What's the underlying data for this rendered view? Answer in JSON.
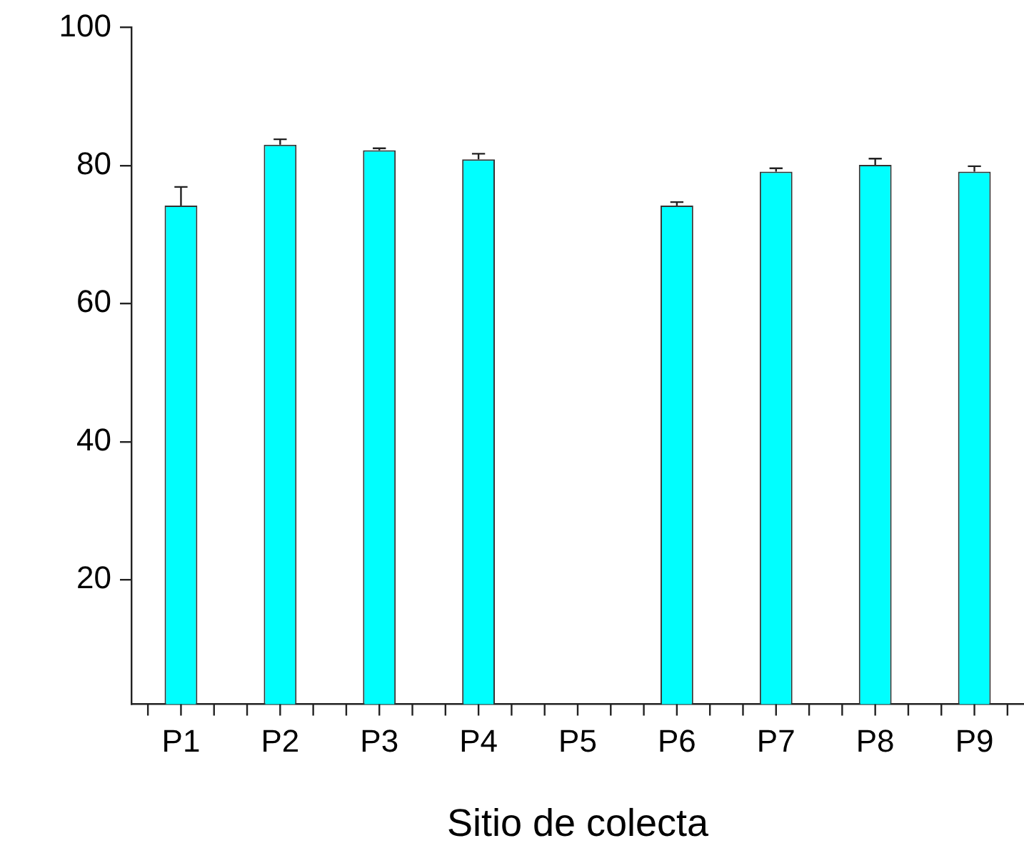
{
  "chart_data": {
    "type": "bar",
    "xlabel": "Sitio de colecta",
    "categories": [
      "P1",
      "P2",
      "P3",
      "P4",
      "P5",
      "P6",
      "P7",
      "P8",
      "P9"
    ],
    "values": [
      74.2,
      83.0,
      82.2,
      80.9,
      null,
      74.2,
      79.1,
      80.1,
      79.1
    ],
    "errors": [
      [
        74.2,
        76.9
      ],
      [
        83.0,
        83.8
      ],
      [
        82.2,
        82.5
      ],
      [
        80.9,
        81.7
      ],
      null,
      [
        74.2,
        74.7
      ],
      [
        79.1,
        79.6
      ],
      [
        80.1,
        81.0
      ],
      [
        79.1,
        79.9
      ]
    ],
    "color": "#00ffff",
    "ylim": [
      2,
      100
    ],
    "yticks": [
      20,
      40,
      60,
      80,
      100
    ],
    "grid": false
  }
}
